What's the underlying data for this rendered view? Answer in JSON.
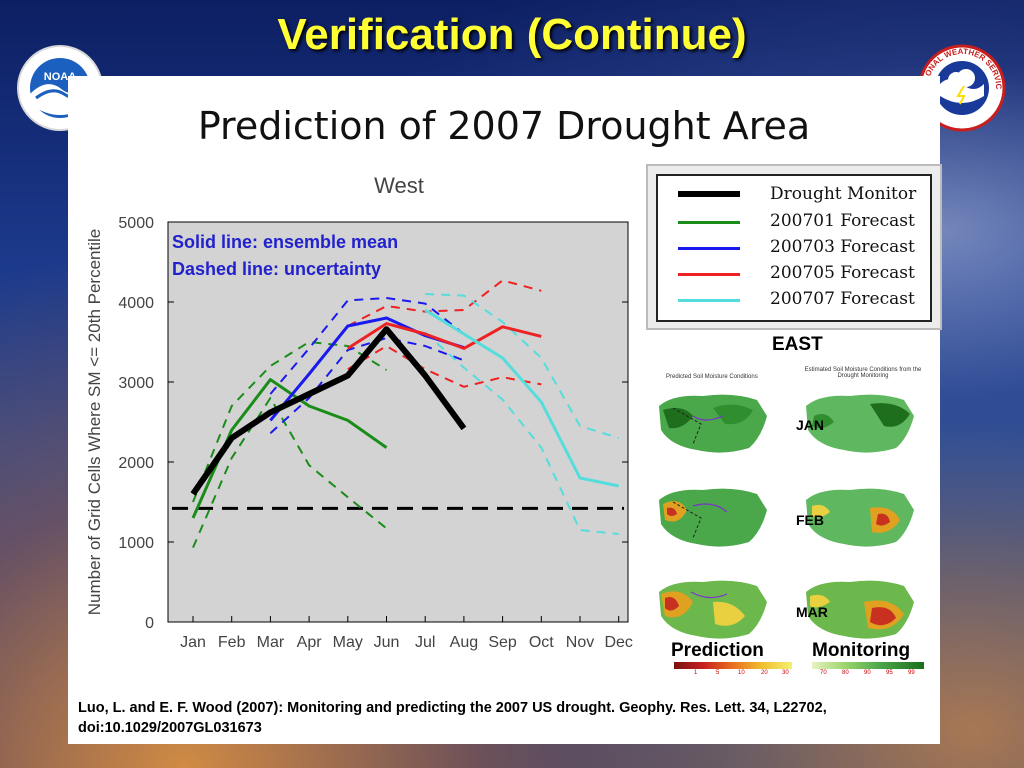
{
  "slide": {
    "title": "Verification (Continue)",
    "panel_title": "Prediction of 2007 Drought Area",
    "annotation_solid": "Solid line: ensemble mean",
    "annotation_dashed": "Dashed line: uncertainty",
    "citation": "Luo, L. and E. F. Wood (2007): Monitoring and predicting the 2007 US drought. Geophy. Res. Lett. 34, L22702, doi:10.1029/2007GL031673"
  },
  "logos": {
    "noaa_text": "NOAA",
    "nws_text": "NATIONAL WEATHER SERVICE"
  },
  "legend": [
    {
      "label": "Drought Monitor",
      "color": "#000000",
      "width": 6
    },
    {
      "label": "200701 Forecast",
      "color": "#1a8c1a",
      "width": 3
    },
    {
      "label": "200703 Forecast",
      "color": "#1a1aee",
      "width": 3
    },
    {
      "label": "200705 Forecast",
      "color": "#ee2222",
      "width": 3
    },
    {
      "label": "200707 Forecast",
      "color": "#55dddd",
      "width": 3
    }
  ],
  "east_panel": {
    "title": "EAST",
    "caption_left": "Predicted Soil Moisture Conditions",
    "caption_right": "Estimated Soil Moisture Conditions from the Drought Monitoring",
    "months": [
      "JAN",
      "FEB",
      "MAR"
    ],
    "prediction_label": "Prediction",
    "monitoring_label": "Monitoring",
    "prediction_ticks": [
      "1",
      "5",
      "10",
      "20",
      "30"
    ],
    "monitoring_ticks": [
      "70",
      "80",
      "90",
      "95",
      "99"
    ]
  },
  "chart_data": {
    "type": "line",
    "title": "West",
    "ylabel": "Number of Grid Cells Where SM <= 20th Percentile",
    "xlabel": "",
    "categories": [
      "Jan",
      "Feb",
      "Mar",
      "Apr",
      "May",
      "Jun",
      "Jul",
      "Aug",
      "Sep",
      "Oct",
      "Nov",
      "Dec"
    ],
    "ylim": [
      0,
      5000
    ],
    "yticks": [
      "0",
      "1000",
      "2000",
      "3000",
      "4000",
      "5000"
    ],
    "threshold": 1420,
    "series": [
      {
        "name": "Drought Monitor",
        "color": "#000000",
        "width": 6,
        "dash": false,
        "x": [
          0,
          1,
          2,
          3,
          4,
          5,
          6,
          7
        ],
        "values": [
          1600,
          2300,
          2620,
          2850,
          3080,
          3660,
          3080,
          2420
        ]
      },
      {
        "name": "200701 Forecast",
        "color": "#1a8c1a",
        "width": 3,
        "dash": false,
        "x": [
          0,
          1,
          2,
          3,
          4,
          5
        ],
        "values": [
          1300,
          2400,
          3030,
          2700,
          2520,
          2180
        ]
      },
      {
        "name": "200701 Forecast upper",
        "color": "#1a8c1a",
        "width": 2,
        "dash": true,
        "x": [
          0,
          1,
          2,
          3,
          4,
          5
        ],
        "values": [
          1500,
          2700,
          3200,
          3500,
          3450,
          3150
        ]
      },
      {
        "name": "200701 Forecast lower",
        "color": "#1a8c1a",
        "width": 2,
        "dash": true,
        "x": [
          0,
          1,
          2,
          3,
          4,
          5
        ],
        "values": [
          930,
          2050,
          2800,
          1960,
          1560,
          1170
        ]
      },
      {
        "name": "200703 Forecast",
        "color": "#1a1aee",
        "width": 3,
        "dash": false,
        "x": [
          2,
          3,
          4,
          5,
          6,
          7
        ],
        "values": [
          2520,
          3100,
          3700,
          3800,
          3580,
          3430
        ]
      },
      {
        "name": "200703 Forecast upper",
        "color": "#1a1aee",
        "width": 2,
        "dash": true,
        "x": [
          2,
          3,
          4,
          5,
          6,
          7
        ],
        "values": [
          2850,
          3420,
          4020,
          4050,
          3980,
          3600
        ]
      },
      {
        "name": "200703 Forecast lower",
        "color": "#1a1aee",
        "width": 2,
        "dash": true,
        "x": [
          2,
          3,
          4,
          5,
          6,
          7
        ],
        "values": [
          2360,
          2800,
          3400,
          3550,
          3450,
          3270
        ]
      },
      {
        "name": "200705 Forecast",
        "color": "#ee2222",
        "width": 3,
        "dash": false,
        "x": [
          4,
          5,
          6,
          7,
          8,
          9
        ],
        "values": [
          3420,
          3730,
          3600,
          3420,
          3690,
          3570
        ]
      },
      {
        "name": "200705 Forecast upper",
        "color": "#ee2222",
        "width": 2,
        "dash": true,
        "x": [
          4,
          5,
          6,
          7,
          8,
          9
        ],
        "values": [
          3700,
          3950,
          3880,
          3900,
          4270,
          4140
        ]
      },
      {
        "name": "200705 Forecast lower",
        "color": "#ee2222",
        "width": 2,
        "dash": true,
        "x": [
          4,
          5,
          6,
          7,
          8,
          9
        ],
        "values": [
          3160,
          3450,
          3160,
          2940,
          3060,
          2970
        ]
      },
      {
        "name": "200707 Forecast",
        "color": "#55dddd",
        "width": 3,
        "dash": false,
        "x": [
          6,
          7,
          8,
          9,
          10,
          11
        ],
        "values": [
          3900,
          3600,
          3300,
          2750,
          1800,
          1700
        ]
      },
      {
        "name": "200707 Forecast upper",
        "color": "#55dddd",
        "width": 2,
        "dash": true,
        "x": [
          6,
          7,
          8,
          9,
          10,
          11
        ],
        "values": [
          4100,
          4080,
          3750,
          3300,
          2450,
          2300
        ]
      },
      {
        "name": "200707 Forecast lower",
        "color": "#55dddd",
        "width": 2,
        "dash": true,
        "x": [
          6,
          7,
          8,
          9,
          10,
          11
        ],
        "values": [
          3620,
          3180,
          2780,
          2180,
          1150,
          1100
        ]
      }
    ]
  }
}
